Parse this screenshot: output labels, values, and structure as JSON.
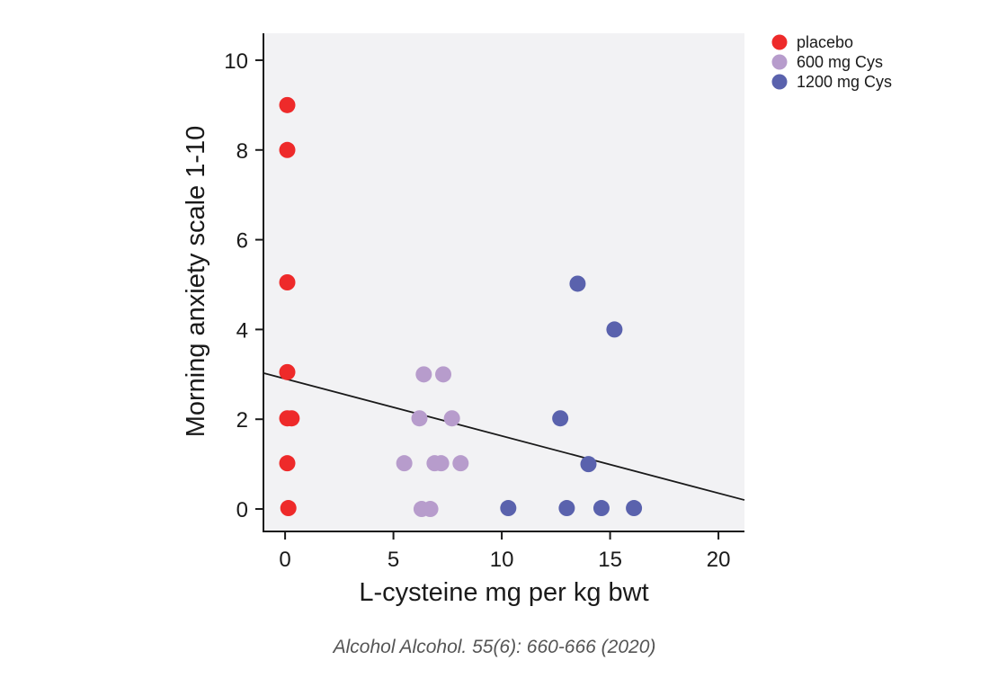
{
  "citation": "Alcohol Alcohol. 55(6): 660-666 (2020)",
  "chart_data": {
    "type": "scatter",
    "xlabel": "L-cysteine mg per kg bwt",
    "ylabel": "Morning anxiety scale 1-10",
    "xlim": [
      -1,
      21.2
    ],
    "ylim": [
      -0.5,
      10.6
    ],
    "xticks": [
      "0",
      "5",
      "10",
      "15",
      "20"
    ],
    "yticks": [
      "0",
      "2",
      "4",
      "6",
      "8",
      "10"
    ],
    "grid": false,
    "legend_position": "outside-top-right",
    "background": "#f2f2f4",
    "series": [
      {
        "name": "placebo",
        "color": "#ee2a2a",
        "points": [
          [
            0.1,
            9
          ],
          [
            0.1,
            8
          ],
          [
            0.1,
            5.05
          ],
          [
            0.1,
            3.05
          ],
          [
            0.1,
            2.02
          ],
          [
            0.3,
            2.02
          ],
          [
            0.1,
            1.02
          ],
          [
            0.15,
            0.02
          ]
        ]
      },
      {
        "name": "600 mg Cys",
        "color": "#b79ccc",
        "points": [
          [
            6.4,
            3
          ],
          [
            7.3,
            3
          ],
          [
            6.2,
            2.02
          ],
          [
            7.7,
            2.02
          ],
          [
            5.5,
            1.02
          ],
          [
            6.9,
            1.02
          ],
          [
            7.2,
            1.02
          ],
          [
            8.1,
            1.02
          ],
          [
            6.3,
            0
          ],
          [
            6.7,
            0
          ]
        ]
      },
      {
        "name": "1200 mg Cys",
        "color": "#5a62ad",
        "points": [
          [
            13.5,
            5.02
          ],
          [
            15.2,
            4
          ],
          [
            12.7,
            2.02
          ],
          [
            14.0,
            1.0
          ],
          [
            10.3,
            0.02
          ],
          [
            13.0,
            0.02
          ],
          [
            14.6,
            0.02
          ],
          [
            16.1,
            0.02
          ]
        ]
      }
    ],
    "trendline": {
      "color": "#1a1a1a",
      "points": [
        [
          -1,
          3.03
        ],
        [
          21.2,
          0.2
        ]
      ]
    }
  }
}
